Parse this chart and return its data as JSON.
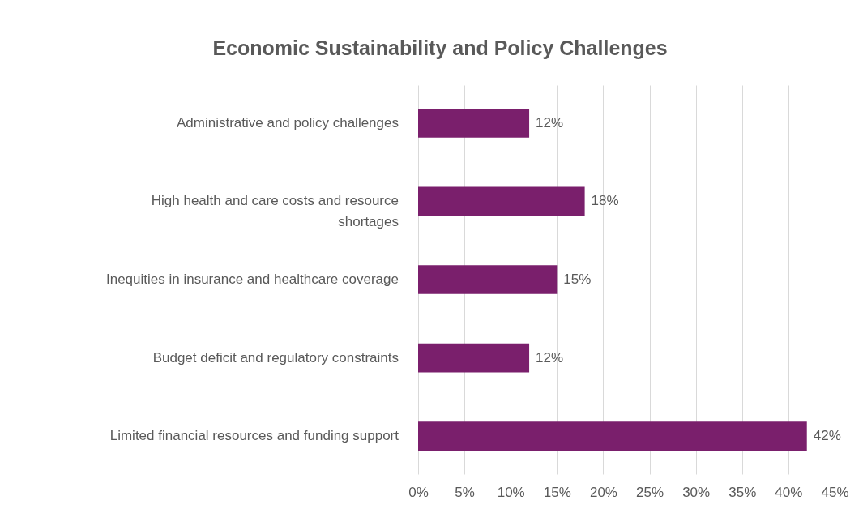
{
  "chart_data": {
    "type": "bar",
    "orientation": "horizontal",
    "title": "Economic Sustainability and Policy Challenges",
    "categories": [
      "Administrative and policy challenges",
      "High health and care costs and resource shortages",
      "Inequities in insurance and healthcare coverage",
      "Budget deficit and regulatory constraints",
      "Limited financial resources and funding support"
    ],
    "values": [
      12,
      18,
      15,
      12,
      42
    ],
    "value_labels": [
      "12%",
      "18%",
      "15%",
      "12%",
      "42%"
    ],
    "color": "#7a1f6c",
    "xlim": [
      0,
      45
    ],
    "xticks": [
      {
        "value": 0,
        "label": "0%"
      },
      {
        "value": 5,
        "label": "5%"
      },
      {
        "value": 10,
        "label": "10%"
      },
      {
        "value": 15,
        "label": "15%"
      },
      {
        "value": 20,
        "label": "20%"
      },
      {
        "value": 25,
        "label": "25%"
      },
      {
        "value": 30,
        "label": "30%"
      },
      {
        "value": 35,
        "label": "35%"
      },
      {
        "value": 40,
        "label": "40%"
      },
      {
        "value": 45,
        "label": "45%"
      }
    ],
    "grid": "x"
  }
}
